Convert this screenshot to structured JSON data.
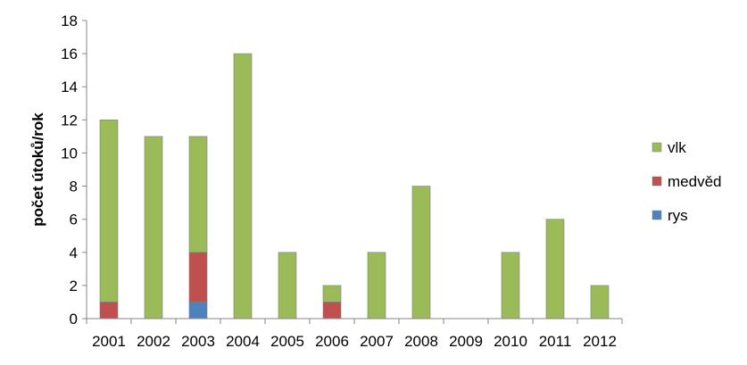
{
  "chart_data": {
    "type": "bar",
    "stacked": true,
    "ylabel": "počet útoků/rok",
    "xlabel": "",
    "ylim": [
      0,
      18
    ],
    "yticks": [
      0,
      2,
      4,
      6,
      8,
      10,
      12,
      14,
      16,
      18
    ],
    "categories": [
      "2001",
      "2002",
      "2003",
      "2004",
      "2005",
      "2006",
      "2007",
      "2008",
      "2009",
      "2010",
      "2011",
      "2012"
    ],
    "series": [
      {
        "name": "rys",
        "color": "#4F81BD",
        "values": [
          0,
          0,
          1,
          0,
          0,
          0,
          0,
          0,
          0,
          0,
          0,
          0
        ]
      },
      {
        "name": "medvěd",
        "color": "#C0504D",
        "values": [
          1,
          0,
          3,
          0,
          0,
          1,
          0,
          0,
          0,
          0,
          0,
          0
        ]
      },
      {
        "name": "vlk",
        "color": "#9BBB59",
        "values": [
          11,
          11,
          7,
          16,
          4,
          1,
          4,
          8,
          0,
          4,
          6,
          2
        ]
      }
    ],
    "legend_position": "right",
    "legend_order": [
      "vlk",
      "medvěd",
      "rys"
    ],
    "grid": false
  }
}
